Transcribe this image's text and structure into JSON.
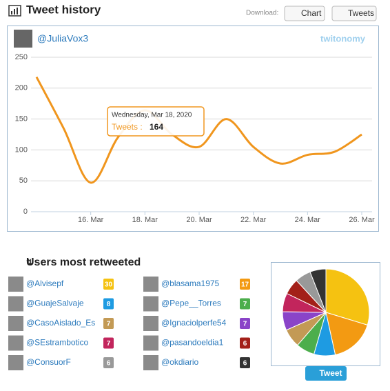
{
  "header": {
    "title": "Tweet history",
    "download": "Download:",
    "chart_button": "Chart",
    "tweets_button": "Tweets"
  },
  "chart_data": {
    "type": "line",
    "user": "@JuliaVox3",
    "logo": "twitonomy",
    "categories": [
      null,
      null,
      "16. Mar",
      null,
      "18. Mar",
      null,
      "20. Mar",
      null,
      "22. Mar",
      null,
      "24. Mar",
      null,
      "26. Mar"
    ],
    "values": [
      218,
      135,
      47,
      120,
      164,
      125,
      105,
      150,
      105,
      78,
      92,
      97,
      125
    ],
    "color": "#f0961e",
    "ylim": [
      0,
      250
    ],
    "yticks": [
      0,
      50,
      100,
      150,
      200,
      250
    ],
    "grid": true,
    "tooltip": {
      "date": "Wednesday, Mar 18, 2020",
      "label": "Tweets :"
    }
  },
  "retweeted": {
    "title": "Users most retweeted",
    "button": "Tweet",
    "users": [
      {
        "name": "@Alvisepf",
        "count": 30,
        "color": "#f5c211"
      },
      {
        "name": "@blasama1975",
        "count": 17,
        "color": "#f39a12"
      },
      {
        "name": "@GuajeSalvaje",
        "count": 8,
        "color": "#1e9be2"
      },
      {
        "name": "@Pepe__Torres",
        "count": 7,
        "color": "#4cae4c"
      },
      {
        "name": "@CasoAislado_Es",
        "count": 7,
        "color": "#c39a55"
      },
      {
        "name": "@Ignaciolperfe54",
        "count": 7,
        "color": "#8a44c8"
      },
      {
        "name": "@SEstrambotico",
        "count": 7,
        "color": "#c2255c"
      },
      {
        "name": "@pasandoeldia1",
        "count": 6,
        "color": "#a32019"
      },
      {
        "name": "@ConsuorF",
        "count": 6,
        "color": "#999999"
      },
      {
        "name": "@okdiario",
        "count": 6,
        "color": "#333333"
      }
    ]
  }
}
